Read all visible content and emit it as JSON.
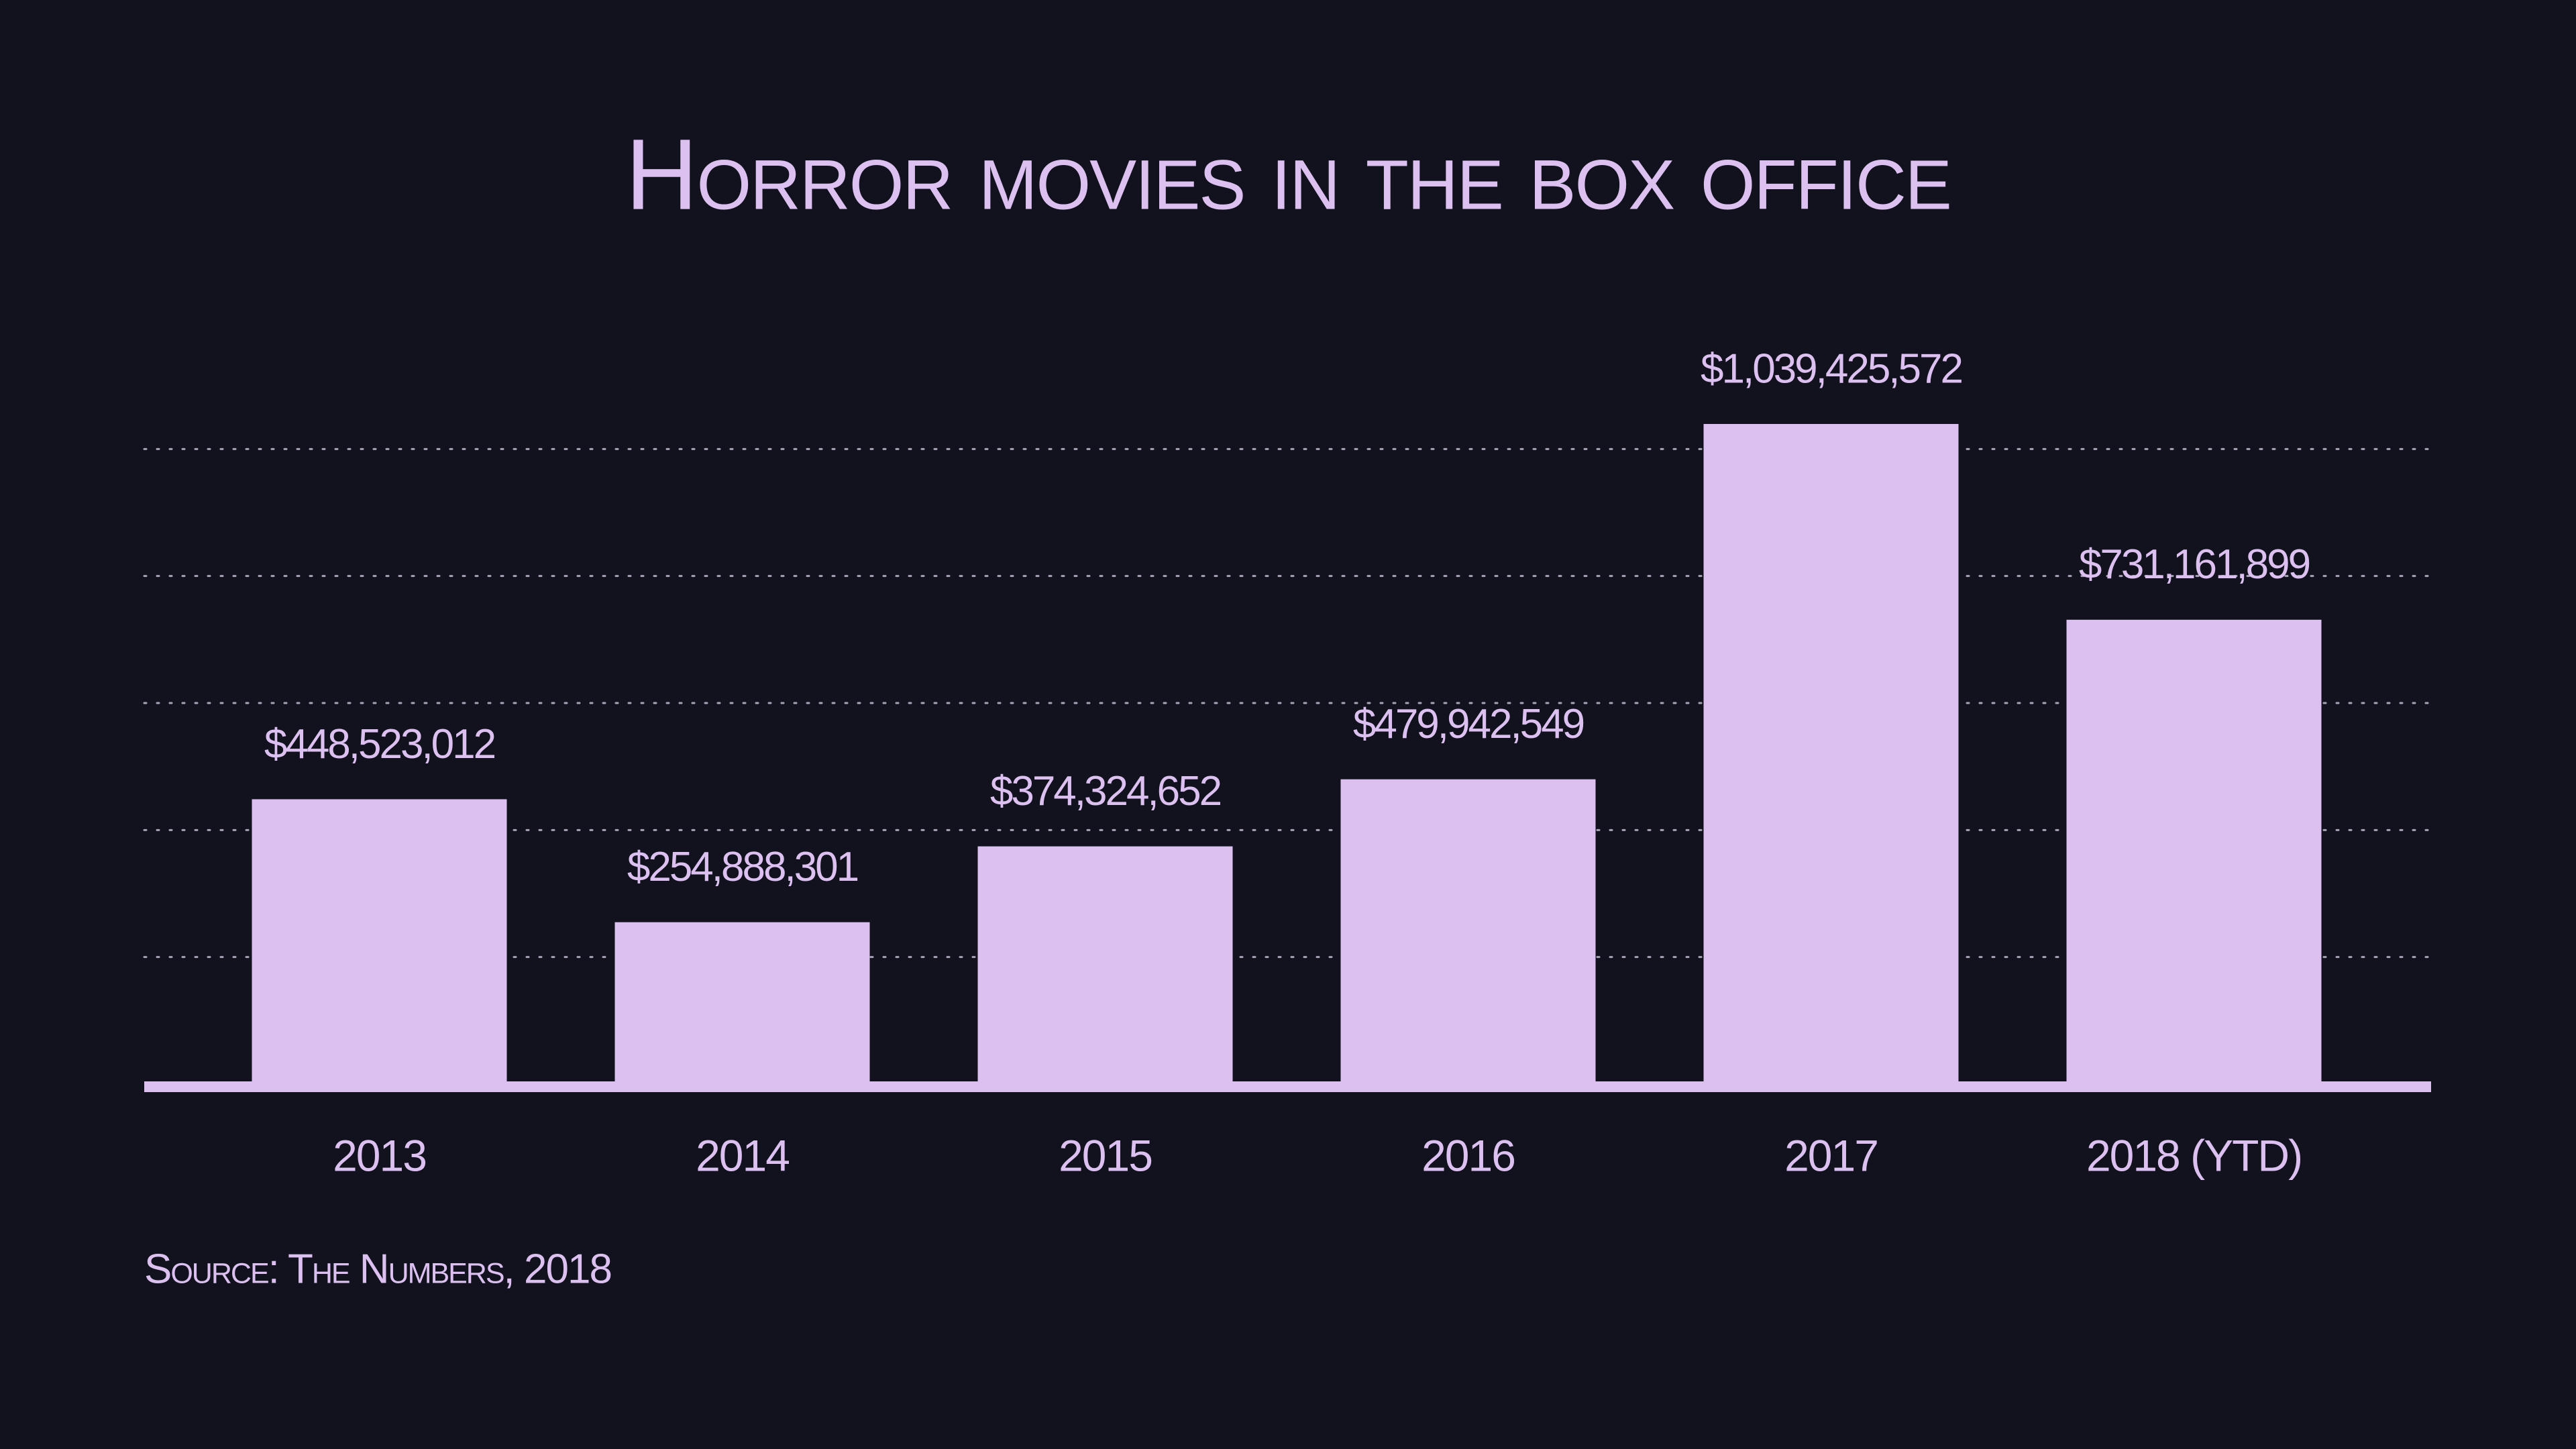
{
  "chart_data": {
    "type": "bar",
    "title": "Horror movies in the box office",
    "categories": [
      "2013",
      "2014",
      "2015",
      "2016",
      "2017",
      "2018 (YTD)"
    ],
    "values": [
      448523012,
      254888301,
      374324652,
      479942549,
      1039425572,
      731161899
    ],
    "value_labels": [
      "$448,523,012",
      "$254,888,301",
      "$374,324,652",
      "$479,942,549",
      "$1,039,425,572",
      "$731,161,899"
    ],
    "color": "#dbc0f0",
    "ylim": [
      0,
      1200000000
    ],
    "yticks": [
      200000000,
      400000000,
      600000000,
      800000000,
      1000000000
    ],
    "grid": true,
    "source": "Source: The Numbers, 2018"
  }
}
